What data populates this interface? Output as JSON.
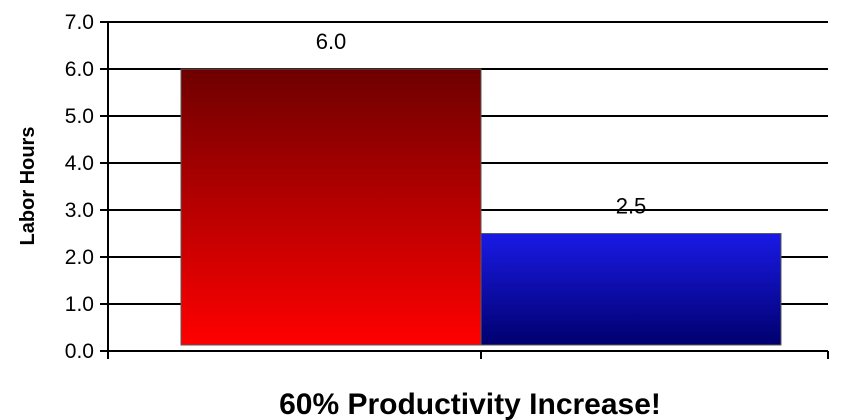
{
  "chart_data": {
    "type": "bar",
    "categories": [
      "",
      ""
    ],
    "values": [
      6.0,
      2.5
    ],
    "value_labels": [
      "6.0",
      "2.5"
    ],
    "ylabel": "Labor Hours",
    "xlabel": "60% Productivity Increase!",
    "ylim": [
      0,
      7
    ],
    "yticks": [
      "0.0",
      "1.0",
      "2.0",
      "3.0",
      "4.0",
      "5.0",
      "6.0",
      "7.0"
    ],
    "grid": true,
    "legend": "none",
    "colors": {
      "bar1_top": "#6e0000",
      "bar1_bottom": "#ff0000",
      "bar2_top": "#1a1ae6",
      "bar2_bottom": "#00006e",
      "gridline": "#000000",
      "axis": "#000000"
    }
  }
}
